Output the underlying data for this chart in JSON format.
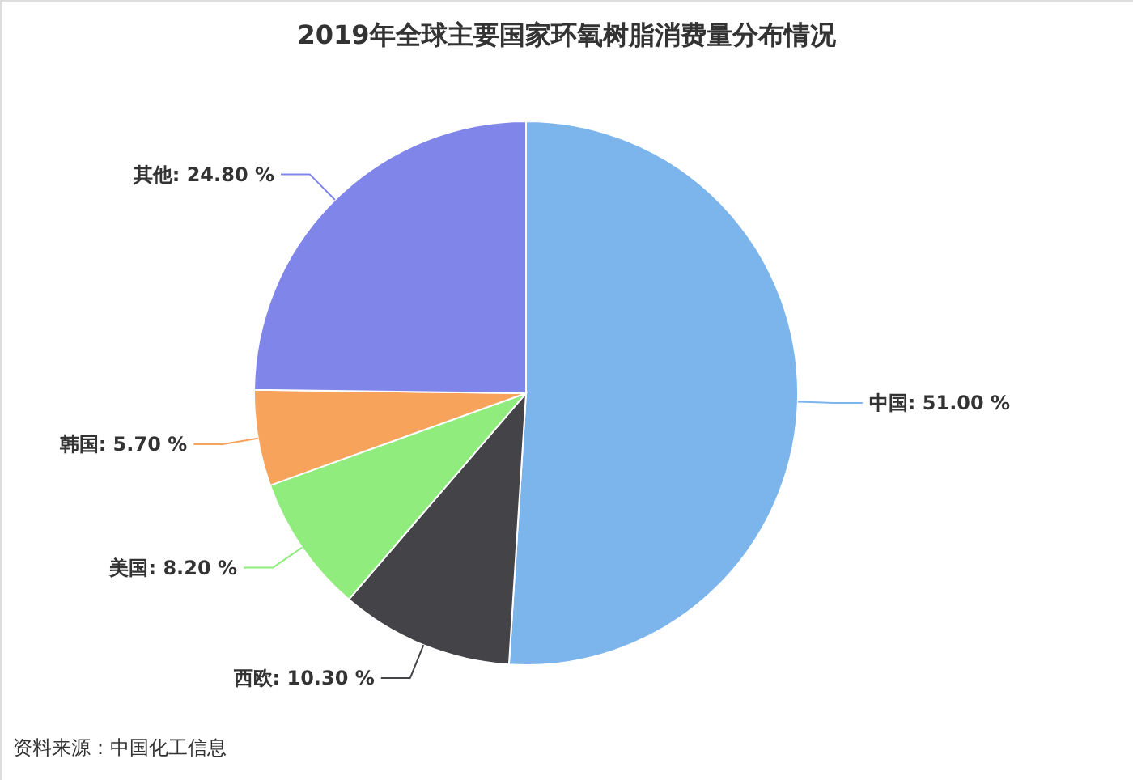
{
  "chart_data": {
    "type": "pie",
    "title": "2019年全球主要国家环氧树脂消费量分布情况",
    "categories": [
      "中国",
      "西欧",
      "美国",
      "韩国",
      "其他"
    ],
    "values": [
      51.0,
      10.3,
      8.2,
      5.7,
      24.8
    ],
    "value_labels": [
      "51.00 %",
      "10.30 %",
      "8.20 %",
      "5.70 %",
      "24.80 %"
    ],
    "colors": [
      "#7cb5ec",
      "#434348",
      "#90ed7d",
      "#f7a35c",
      "#8085e9"
    ],
    "annotations": [
      "资料来源：中国化工信息"
    ]
  }
}
